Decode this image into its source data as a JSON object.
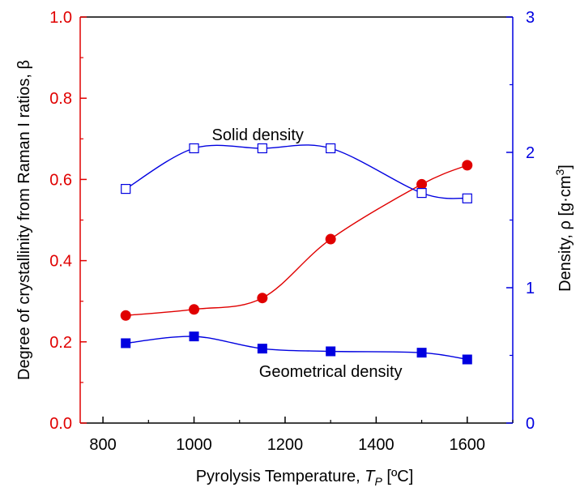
{
  "chart_data": {
    "type": "line",
    "title": "",
    "xlabel": {
      "prefix": "Pyrolysis Temperature, ",
      "symbol": "T",
      "subscript": "P",
      "unit": " [ºC]"
    },
    "ylabel_left": "Degree of crystallinity from Raman I ratios, β",
    "ylabel_right": {
      "text": "Density, ρ [g·cm",
      "superscript": "3",
      "close": "]"
    },
    "xlim": [
      750,
      1700
    ],
    "ylim_left": [
      0,
      1.0
    ],
    "ylim_right": [
      0,
      3
    ],
    "x_ticks": [
      "800",
      "1000",
      "1200",
      "1400",
      "1600"
    ],
    "y_left_ticks": [
      "0.0",
      "0.2",
      "0.4",
      "0.6",
      "0.8",
      "1.0"
    ],
    "y_right_ticks": [
      "0",
      "1",
      "2",
      "3"
    ],
    "grid": false,
    "legend": "none",
    "series": [
      {
        "key": "crystallinity",
        "axis": "left",
        "color": "#e00000",
        "marker": "filled-circle",
        "x": [
          850,
          1000,
          1150,
          1300,
          1500,
          1600
        ],
        "y": [
          0.265,
          0.28,
          0.308,
          0.453,
          0.588,
          0.635
        ]
      },
      {
        "key": "solid",
        "axis": "right",
        "color": "#0000e0",
        "marker": "open-square",
        "x": [
          850,
          1000,
          1150,
          1300,
          1500,
          1600
        ],
        "y": [
          1.73,
          2.03,
          2.03,
          2.03,
          1.7,
          1.66
        ]
      },
      {
        "key": "geometrical",
        "axis": "right",
        "color": "#0000e0",
        "marker": "filled-square",
        "x": [
          850,
          1000,
          1150,
          1300,
          1500,
          1600
        ],
        "y": [
          0.59,
          0.64,
          0.55,
          0.53,
          0.52,
          0.47
        ]
      }
    ],
    "annotations": [
      {
        "text": "Solid density",
        "x": 1140,
        "y_right": 2.09
      },
      {
        "text": "Geometrical density",
        "x": 1300,
        "y_right": 0.34
      }
    ]
  },
  "colors": {
    "left_axis": "#e00000",
    "right_axis": "#0000e0",
    "frame": "#000000"
  }
}
